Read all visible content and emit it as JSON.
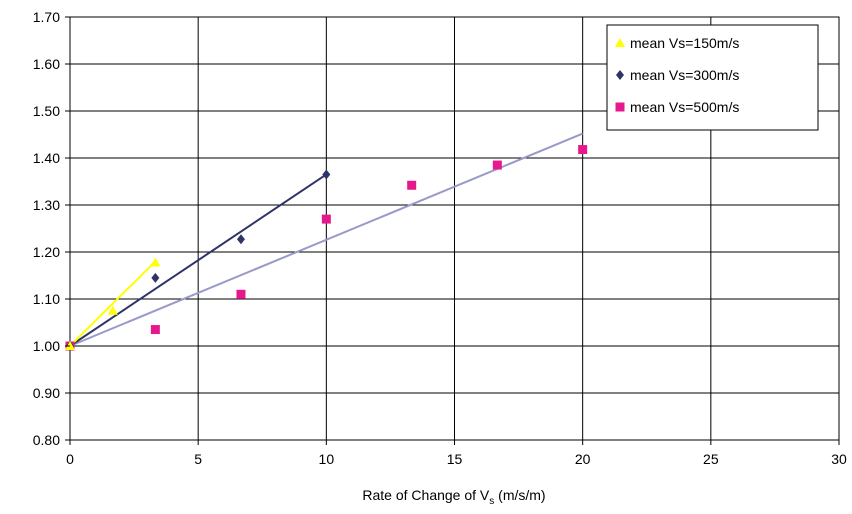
{
  "chart_data": {
    "type": "scatter",
    "xlabel": "Rate of Change of V",
    "xlabel_sub": "s",
    "xlabel_suffix": " (m/s/m)",
    "ylabel": "",
    "xlim": [
      0,
      30
    ],
    "ylim": [
      0.8,
      1.7
    ],
    "x_ticks": [
      0,
      5,
      10,
      15,
      20,
      25,
      30
    ],
    "x_tick_labels": [
      "0",
      "5",
      "10",
      "15",
      "20",
      "25",
      "30"
    ],
    "y_ticks": [
      0.8,
      0.9,
      1.0,
      1.1,
      1.2,
      1.3,
      1.4,
      1.5,
      1.6,
      1.7
    ],
    "y_tick_labels": [
      "0.80",
      "0.90",
      "1.00",
      "1.10",
      "1.20",
      "1.30",
      "1.40",
      "1.50",
      "1.60",
      "1.70"
    ],
    "grid": true,
    "legend_position": "top-right",
    "series": [
      {
        "name": "mean Vs=150m/s",
        "marker": "triangle",
        "color": "#ffff00",
        "points": [
          [
            0,
            1.0
          ],
          [
            1.67,
            1.075
          ],
          [
            3.33,
            1.178
          ]
        ],
        "trendline": {
          "from": [
            0,
            1.0
          ],
          "to": [
            3.33,
            1.18
          ],
          "color": "#ffff00"
        }
      },
      {
        "name": "mean Vs=300m/s",
        "marker": "diamond",
        "color": "#2e3466",
        "points": [
          [
            0,
            1.0
          ],
          [
            3.33,
            1.145
          ],
          [
            6.67,
            1.227
          ],
          [
            10.0,
            1.365
          ]
        ],
        "trendline": {
          "from": [
            0,
            1.0
          ],
          "to": [
            10.0,
            1.365
          ],
          "color": "#2e3466"
        }
      },
      {
        "name": "mean Vs=500m/s",
        "marker": "square",
        "color": "#e6198c",
        "points": [
          [
            0,
            1.0
          ],
          [
            3.33,
            1.035
          ],
          [
            6.67,
            1.11
          ],
          [
            10.0,
            1.27
          ],
          [
            13.33,
            1.342
          ],
          [
            16.67,
            1.385
          ],
          [
            20.0,
            1.418
          ]
        ],
        "trendline": {
          "from": [
            0,
            1.0
          ],
          "to": [
            20.0,
            1.452
          ],
          "color": "#9999cc"
        }
      }
    ]
  }
}
